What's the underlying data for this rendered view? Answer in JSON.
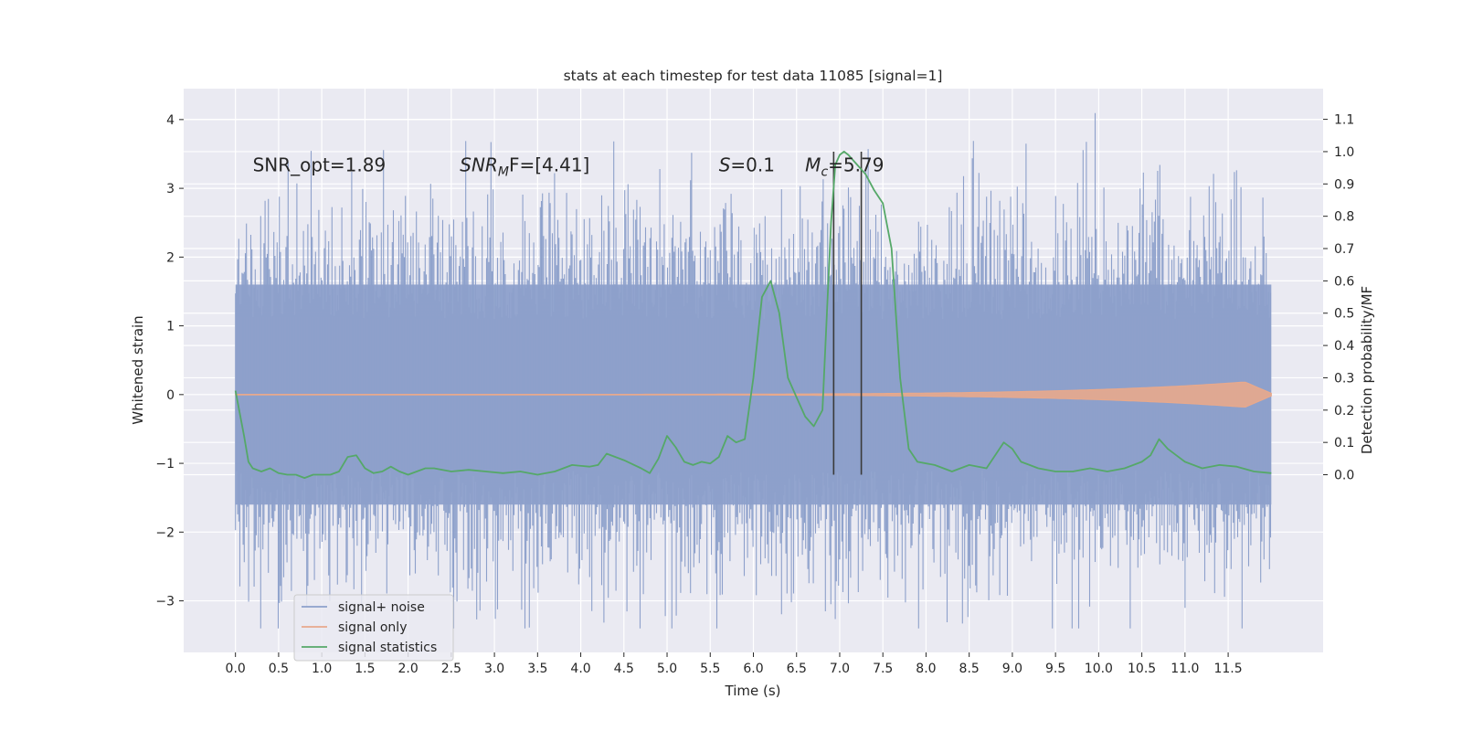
{
  "chart_data": {
    "type": "line",
    "title": "stats at each timestep for test data 11085 [signal=1]",
    "xlabel": "Time (s)",
    "ylabel": "Whitened strain",
    "ylabel_right": "Detection probability/MF",
    "xlim": [
      -0.6,
      12.6
    ],
    "ylim": [
      -3.75,
      4.45
    ],
    "ylim_right": [
      -0.55,
      1.195
    ],
    "x_ticks": [
      "0.0",
      "0.5",
      "1.0",
      "1.5",
      "2.0",
      "2.5",
      "3.0",
      "3.5",
      "4.0",
      "4.5",
      "5.0",
      "5.5",
      "6.0",
      "6.5",
      "7.0",
      "7.5",
      "8.0",
      "8.5",
      "9.0",
      "9.5",
      "10.0",
      "10.5",
      "11.0",
      "11.5"
    ],
    "y_ticks": [
      "4",
      "3",
      "2",
      "1",
      "0",
      "−1",
      "−2",
      "−3"
    ],
    "y_ticks_right": [
      "1.1",
      "1.0",
      "0.9",
      "0.8",
      "0.7",
      "0.6",
      "0.5",
      "0.4",
      "0.3",
      "0.2",
      "0.1",
      "0.0"
    ],
    "grid": true,
    "legend_position": "lower-left",
    "annotations": [
      {
        "text": "SNR_opt=1.89",
        "x": 0.2,
        "y": 3.25
      },
      {
        "text": "SNR",
        "sub": "M",
        "suffix": "F=[4.41]",
        "x": 2.6,
        "y": 3.25
      },
      {
        "text": "S",
        "suffix": "=0.1",
        "x": 5.6,
        "y": 3.25
      },
      {
        "text": "M",
        "sub": "c",
        "suffix": "=5.79",
        "x": 6.6,
        "y": 3.25
      }
    ],
    "vlines": [
      {
        "x": 6.93,
        "y_right": [
          0.0,
          1.0
        ]
      },
      {
        "x": 7.25,
        "y_right": [
          0.0,
          1.0
        ]
      }
    ],
    "series": [
      {
        "name": "signal+ noise",
        "color": "#8da0cb",
        "x_range": [
          0.0,
          12.0
        ],
        "typical_range": [
          -1.6,
          1.6
        ],
        "extreme_range": [
          -3.4,
          4.1
        ]
      },
      {
        "name": "signal only",
        "color": "#e8a98c",
        "x_range": [
          0.0,
          12.0
        ],
        "peak_amplitude": 0.18,
        "peak_x": 11.7
      },
      {
        "name": "signal statistics",
        "color": "#55a868",
        "axis": "right",
        "x": [
          0.0,
          0.1,
          0.15,
          0.2,
          0.3,
          0.4,
          0.5,
          0.6,
          0.7,
          0.8,
          0.9,
          1.0,
          1.1,
          1.2,
          1.3,
          1.4,
          1.5,
          1.6,
          1.7,
          1.8,
          1.9,
          2.0,
          2.1,
          2.2,
          2.3,
          2.5,
          2.7,
          2.9,
          3.1,
          3.3,
          3.5,
          3.7,
          3.9,
          4.1,
          4.2,
          4.3,
          4.5,
          4.7,
          4.8,
          4.9,
          5.0,
          5.1,
          5.2,
          5.3,
          5.4,
          5.5,
          5.6,
          5.7,
          5.8,
          5.9,
          6.0,
          6.1,
          6.2,
          6.3,
          6.4,
          6.5,
          6.6,
          6.7,
          6.8,
          6.9,
          6.95,
          7.0,
          7.05,
          7.1,
          7.2,
          7.3,
          7.4,
          7.5,
          7.6,
          7.7,
          7.8,
          7.9,
          8.1,
          8.3,
          8.5,
          8.7,
          8.9,
          9.0,
          9.1,
          9.2,
          9.3,
          9.5,
          9.7,
          9.9,
          10.1,
          10.3,
          10.5,
          10.6,
          10.7,
          10.8,
          10.9,
          11.0,
          11.2,
          11.4,
          11.6,
          11.8,
          12.0
        ],
        "values": [
          0.26,
          0.12,
          0.04,
          0.02,
          0.01,
          0.02,
          0.005,
          0.0,
          0.0,
          -0.01,
          0.0,
          0.0,
          0.0,
          0.01,
          0.055,
          0.06,
          0.02,
          0.005,
          0.01,
          0.025,
          0.01,
          0.0,
          0.01,
          0.02,
          0.02,
          0.01,
          0.015,
          0.01,
          0.005,
          0.01,
          0.0,
          0.01,
          0.03,
          0.025,
          0.03,
          0.065,
          0.045,
          0.02,
          0.005,
          0.05,
          0.12,
          0.085,
          0.04,
          0.03,
          0.04,
          0.035,
          0.055,
          0.12,
          0.1,
          0.11,
          0.3,
          0.55,
          0.6,
          0.5,
          0.3,
          0.24,
          0.18,
          0.15,
          0.2,
          0.78,
          0.96,
          0.99,
          1.0,
          0.99,
          0.96,
          0.93,
          0.88,
          0.84,
          0.7,
          0.3,
          0.08,
          0.04,
          0.03,
          0.01,
          0.03,
          0.02,
          0.1,
          0.08,
          0.04,
          0.03,
          0.02,
          0.01,
          0.01,
          0.02,
          0.01,
          0.02,
          0.04,
          0.06,
          0.11,
          0.08,
          0.06,
          0.04,
          0.02,
          0.03,
          0.025,
          0.01,
          0.005
        ]
      }
    ]
  }
}
